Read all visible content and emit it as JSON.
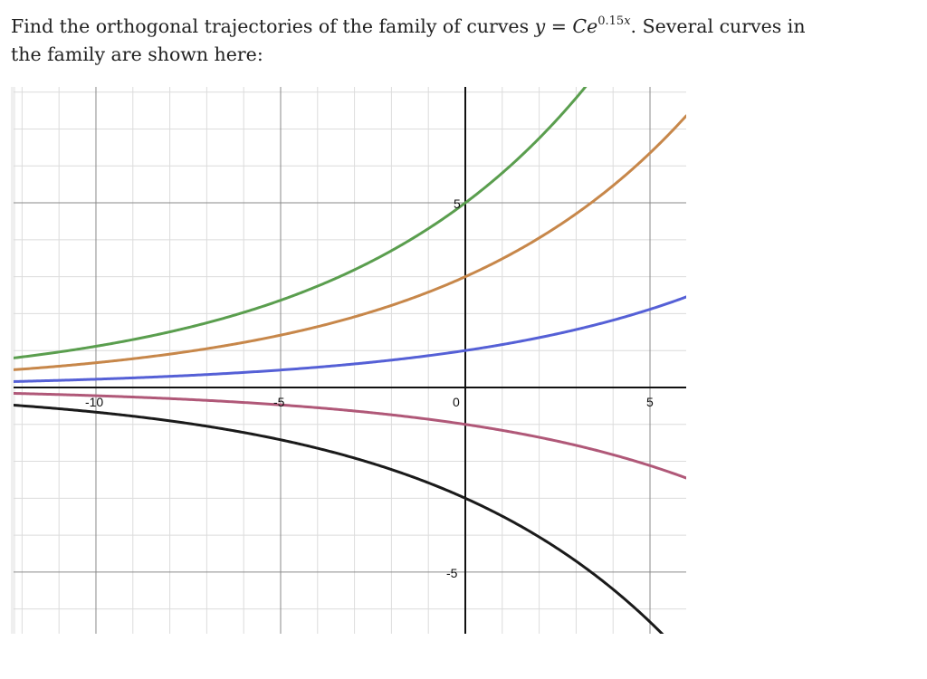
{
  "problem": {
    "text_before": "Find the orthogonal trajectories of the family of curves ",
    "eq_lhs": "y",
    "eq_sign": " = ",
    "eq_C": "C",
    "eq_base": "e",
    "eq_exp_num": "0.15",
    "eq_exp_var": "x",
    "text_after_line1": ". Several curves in",
    "line2": "the family are shown here:"
  },
  "colors": {
    "grid_minor": "#dcdcdc",
    "grid_major": "#8a8a8a",
    "axis": "#111111",
    "green": "#5a9e4e",
    "orange": "#c7874a",
    "blue": "#5560d6",
    "magenta": "#b05878",
    "black": "#1a1a1a"
  },
  "chart_data": {
    "type": "line",
    "title": "",
    "function": "y = C*e^(0.15x)",
    "xlabel": "",
    "ylabel": "",
    "xlim": [
      -12.23,
      5.98
    ],
    "ylim": [
      -6.67,
      8.14
    ],
    "grid": true,
    "x_ticks": [
      {
        "value": -10,
        "label": "-10"
      },
      {
        "value": -5,
        "label": "-5"
      },
      {
        "value": 0,
        "label": "0"
      },
      {
        "value": 5,
        "label": "5"
      }
    ],
    "y_ticks": [
      {
        "value": 5,
        "label": "5"
      },
      {
        "value": -5,
        "label": "-5"
      }
    ],
    "series": [
      {
        "name": "C = 5",
        "C": 5,
        "color": "#5a9e4e"
      },
      {
        "name": "C = 3",
        "C": 3,
        "color": "#c7874a"
      },
      {
        "name": "C = 1",
        "C": 1,
        "color": "#5560d6"
      },
      {
        "name": "C = -1",
        "C": -1,
        "color": "#b05878"
      },
      {
        "name": "C = -3",
        "C": -3,
        "color": "#1a1a1a"
      }
    ],
    "legend": null
  }
}
